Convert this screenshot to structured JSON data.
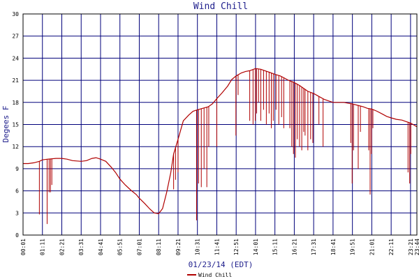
{
  "chart_data": {
    "type": "line",
    "title": "Wind Chill",
    "xlabel": "01/23/14 (EDT)",
    "ylabel": "Degees F",
    "ylim": [
      0,
      30
    ],
    "yticks": [
      0,
      3,
      6,
      9,
      12,
      15,
      18,
      21,
      24,
      27,
      30
    ],
    "xticks": [
      "00:01",
      "01:11",
      "02:21",
      "03:31",
      "04:41",
      "05:51",
      "07:01",
      "08:11",
      "09:21",
      "10:31",
      "11:41",
      "12:51",
      "14:01",
      "15:11",
      "16:21",
      "17:31",
      "18:41",
      "19:51",
      "21:01",
      "22:11",
      "23:21",
      "23:44"
    ],
    "grid": true,
    "legend": "bottom-center",
    "colors": {
      "line": "#b00000",
      "grid": "#00007a",
      "axis": "#000000",
      "title": "#1e1e8c"
    },
    "series": [
      {
        "name": "Wind Chill",
        "x": [
          "00:01",
          "00:20",
          "00:40",
          "01:00",
          "01:11",
          "01:30",
          "02:00",
          "02:21",
          "02:40",
          "03:00",
          "03:31",
          "03:50",
          "04:10",
          "04:25",
          "04:41",
          "05:00",
          "05:20",
          "05:35",
          "05:51",
          "06:10",
          "06:30",
          "06:50",
          "07:01",
          "07:20",
          "07:40",
          "07:55",
          "08:11",
          "08:25",
          "08:40",
          "08:55",
          "09:05",
          "09:21",
          "09:40",
          "10:00",
          "10:15",
          "10:31",
          "10:50",
          "11:10",
          "11:25",
          "11:41",
          "12:00",
          "12:20",
          "12:35",
          "12:51",
          "13:10",
          "13:25",
          "13:40",
          "14:01",
          "14:20",
          "14:35",
          "14:50",
          "15:11",
          "15:30",
          "15:45",
          "16:00",
          "16:21",
          "16:40",
          "16:55",
          "17:10",
          "17:31",
          "17:50",
          "18:10",
          "18:25",
          "18:41",
          "19:00",
          "19:20",
          "19:35",
          "19:51",
          "20:10",
          "20:30",
          "20:45",
          "21:01",
          "21:20",
          "21:40",
          "21:55",
          "22:11",
          "22:30",
          "22:50",
          "23:05",
          "23:21",
          "23:35",
          "23:44"
        ],
        "values": [
          9.7,
          9.7,
          9.8,
          10.0,
          10.2,
          10.3,
          10.4,
          10.4,
          10.3,
          10.1,
          10.0,
          10.1,
          10.4,
          10.5,
          10.3,
          10.0,
          9.2,
          8.5,
          7.6,
          6.8,
          6.1,
          5.5,
          5.0,
          4.3,
          3.5,
          3.0,
          2.9,
          3.6,
          5.8,
          8.5,
          11.0,
          13.0,
          15.5,
          16.3,
          16.8,
          17.0,
          17.2,
          17.4,
          17.8,
          18.5,
          19.3,
          20.2,
          21.1,
          21.6,
          22.0,
          22.2,
          22.3,
          22.6,
          22.5,
          22.3,
          22.1,
          21.8,
          21.6,
          21.3,
          21.0,
          20.7,
          20.3,
          19.9,
          19.5,
          19.2,
          18.8,
          18.4,
          18.2,
          18.0,
          18.0,
          18.0,
          17.9,
          17.8,
          17.6,
          17.4,
          17.2,
          17.1,
          16.8,
          16.4,
          16.1,
          15.9,
          15.7,
          15.6,
          15.4,
          15.2,
          14.9,
          14.7
        ]
      }
    ],
    "dips": [
      {
        "x": "01:00",
        "y": 2.8
      },
      {
        "x": "01:28",
        "y": 1.5
      },
      {
        "x": "01:35",
        "y": 5.8
      },
      {
        "x": "01:40",
        "y": 5.8
      },
      {
        "x": "01:45",
        "y": 6.8
      },
      {
        "x": "09:05",
        "y": 6.2
      },
      {
        "x": "09:12",
        "y": 7.5
      },
      {
        "x": "09:21",
        "y": 8.5
      },
      {
        "x": "10:28",
        "y": 2.0
      },
      {
        "x": "10:35",
        "y": 7.0
      },
      {
        "x": "10:45",
        "y": 6.5
      },
      {
        "x": "10:55",
        "y": 9.0
      },
      {
        "x": "11:05",
        "y": 6.5
      },
      {
        "x": "11:12",
        "y": 12.0
      },
      {
        "x": "11:41",
        "y": 12.0
      },
      {
        "x": "12:50",
        "y": 13.5
      },
      {
        "x": "12:58",
        "y": 19.0
      },
      {
        "x": "13:40",
        "y": 15.5
      },
      {
        "x": "13:52",
        "y": 15.0
      },
      {
        "x": "14:00",
        "y": 15.5
      },
      {
        "x": "14:05",
        "y": 16.5
      },
      {
        "x": "14:12",
        "y": 18.0
      },
      {
        "x": "14:20",
        "y": 15.5
      },
      {
        "x": "14:30",
        "y": 17.0
      },
      {
        "x": "14:40",
        "y": 15.0
      },
      {
        "x": "14:50",
        "y": 16.5
      },
      {
        "x": "14:58",
        "y": 14.5
      },
      {
        "x": "15:05",
        "y": 15.5
      },
      {
        "x": "15:15",
        "y": 17.0
      },
      {
        "x": "15:25",
        "y": 15.0
      },
      {
        "x": "15:35",
        "y": 16.0
      },
      {
        "x": "15:43",
        "y": 14.5
      },
      {
        "x": "16:05",
        "y": 14.5
      },
      {
        "x": "16:12",
        "y": 12.0
      },
      {
        "x": "16:18",
        "y": 11.0
      },
      {
        "x": "16:25",
        "y": 10.5
      },
      {
        "x": "16:32",
        "y": 13.0
      },
      {
        "x": "16:40",
        "y": 12.0
      },
      {
        "x": "16:48",
        "y": 11.5
      },
      {
        "x": "16:55",
        "y": 14.0
      },
      {
        "x": "17:00",
        "y": 13.5
      },
      {
        "x": "17:10",
        "y": 11.5
      },
      {
        "x": "17:20",
        "y": 13.0
      },
      {
        "x": "17:28",
        "y": 12.5
      },
      {
        "x": "17:50",
        "y": 15.0
      },
      {
        "x": "18:05",
        "y": 12.0
      },
      {
        "x": "19:45",
        "y": 12.5
      },
      {
        "x": "19:50",
        "y": 7.0
      },
      {
        "x": "19:55",
        "y": 11.5
      },
      {
        "x": "20:12",
        "y": 9.0
      },
      {
        "x": "20:20",
        "y": 14.0
      },
      {
        "x": "20:50",
        "y": 11.5
      },
      {
        "x": "20:55",
        "y": 5.5
      },
      {
        "x": "21:00",
        "y": 11.0
      },
      {
        "x": "21:05",
        "y": 14.5
      },
      {
        "x": "23:12",
        "y": 8.5
      },
      {
        "x": "23:18",
        "y": 7.0
      },
      {
        "x": "23:22",
        "y": 11.0
      }
    ]
  }
}
